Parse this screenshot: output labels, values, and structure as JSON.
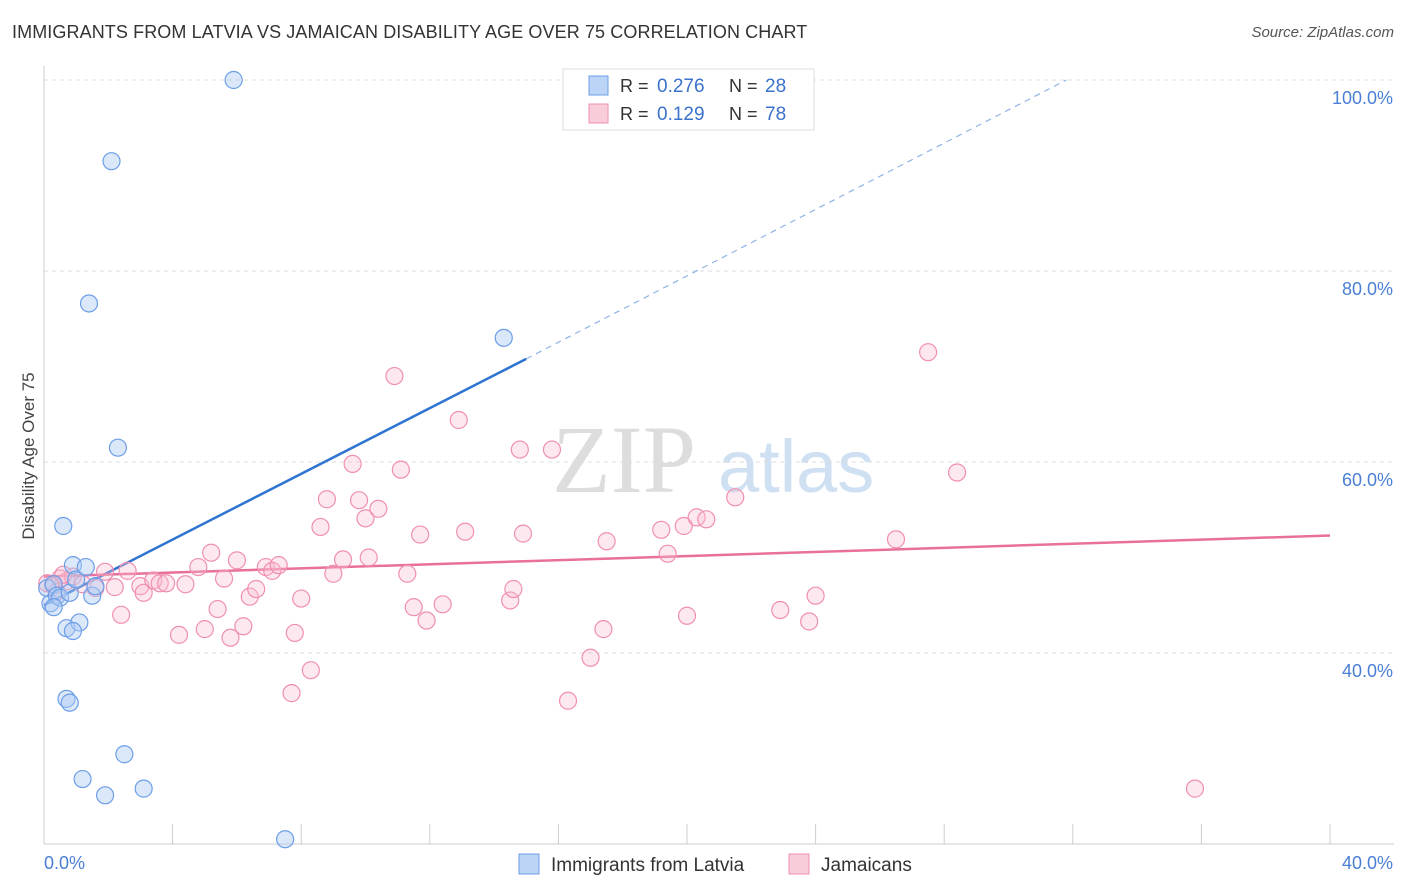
{
  "header": {
    "title": "IMMIGRANTS FROM LATVIA VS JAMAICAN DISABILITY AGE OVER 75 CORRELATION CHART",
    "source": "Source: ZipAtlas.com"
  },
  "watermark": {
    "zip": "ZIP",
    "atlas": "atlas"
  },
  "legend": {
    "r_label": "R =",
    "n_label": "N =",
    "rows": [
      {
        "r": "0.276",
        "n": "28",
        "color": "#6c9ee8"
      },
      {
        "r": "0.129",
        "n": "78",
        "color": "#f08fb0"
      }
    ]
  },
  "bottom_legend": [
    "Immigrants from Latvia",
    "Jamaicans"
  ],
  "chart_data": {
    "type": "scatter",
    "title": "IMMIGRANTS FROM LATVIA VS JAMAICAN DISABILITY AGE OVER 75 CORRELATION CHART",
    "xlabel": "",
    "ylabel": "Disability Age Over 75",
    "xlim": [
      0,
      40
    ],
    "ylim": [
      20,
      102
    ],
    "x_tick_labels": [
      "0.0%",
      "40.0%"
    ],
    "y_ticks": [
      40,
      60,
      80,
      100
    ],
    "y_tick_labels": [
      "40.0%",
      "60.0%",
      "80.0%",
      "100.0%"
    ],
    "grid": true,
    "legend_position": "top-center",
    "colors": {
      "latvia": "#6c9ee8",
      "latvia_line": "#2f74d0",
      "jamaica": "#f08fb0",
      "jamaica_line": "#e8709a",
      "tick_label": "#4a7fd4"
    },
    "series": [
      {
        "name": "Immigrants from Latvia",
        "trend": {
          "x": [
            0.0,
            15.0
          ],
          "y": [
            45.0,
            70.8
          ],
          "dashed_to": [
            31.8,
            100.0
          ]
        },
        "points": [
          [
            0.1,
            46.8
          ],
          [
            0.2,
            45.2
          ],
          [
            0.3,
            47.2
          ],
          [
            0.4,
            46.0
          ],
          [
            0.5,
            45.8
          ],
          [
            0.6,
            53.3
          ],
          [
            0.7,
            42.6
          ],
          [
            0.8,
            46.3
          ],
          [
            0.9,
            49.2
          ],
          [
            1.0,
            47.7
          ],
          [
            1.1,
            43.2
          ],
          [
            1.3,
            49.0
          ],
          [
            1.5,
            46.0
          ],
          [
            1.6,
            47.0
          ],
          [
            0.7,
            35.2
          ],
          [
            0.8,
            34.8
          ],
          [
            1.2,
            26.8
          ],
          [
            1.9,
            25.1
          ],
          [
            2.5,
            29.4
          ],
          [
            3.1,
            25.8
          ],
          [
            2.1,
            91.5
          ],
          [
            1.4,
            76.6
          ],
          [
            2.3,
            61.5
          ],
          [
            5.9,
            100.0
          ],
          [
            14.3,
            73.0
          ],
          [
            7.5,
            20.5
          ],
          [
            0.3,
            44.8
          ],
          [
            0.9,
            42.3
          ]
        ]
      },
      {
        "name": "Jamaicans",
        "trend": {
          "x": [
            0.0,
            40.0
          ],
          "y": [
            48.0,
            52.3
          ]
        },
        "points": [
          [
            0.1,
            47.3
          ],
          [
            0.3,
            47.0
          ],
          [
            0.4,
            46.4
          ],
          [
            0.5,
            47.8
          ],
          [
            0.7,
            47.5
          ],
          [
            0.9,
            48.0
          ],
          [
            1.2,
            47.2
          ],
          [
            1.6,
            46.8
          ],
          [
            1.9,
            48.5
          ],
          [
            2.2,
            46.9
          ],
          [
            2.4,
            44.0
          ],
          [
            2.6,
            48.6
          ],
          [
            3.0,
            47.0
          ],
          [
            3.1,
            46.3
          ],
          [
            3.4,
            47.6
          ],
          [
            3.6,
            47.3
          ],
          [
            3.8,
            47.3
          ],
          [
            4.2,
            41.9
          ],
          [
            4.4,
            47.2
          ],
          [
            4.8,
            49.0
          ],
          [
            5.0,
            42.5
          ],
          [
            5.2,
            50.5
          ],
          [
            5.4,
            44.6
          ],
          [
            5.6,
            47.8
          ],
          [
            5.8,
            41.6
          ],
          [
            6.0,
            49.7
          ],
          [
            6.2,
            42.8
          ],
          [
            6.4,
            45.9
          ],
          [
            6.6,
            46.7
          ],
          [
            6.9,
            49.0
          ],
          [
            7.1,
            48.6
          ],
          [
            7.3,
            49.2
          ],
          [
            7.7,
            35.8
          ],
          [
            7.8,
            42.1
          ],
          [
            8.0,
            45.7
          ],
          [
            8.3,
            38.2
          ],
          [
            8.6,
            53.2
          ],
          [
            8.8,
            56.1
          ],
          [
            9.0,
            48.3
          ],
          [
            9.3,
            49.8
          ],
          [
            9.6,
            59.8
          ],
          [
            9.8,
            56.0
          ],
          [
            10.0,
            54.1
          ],
          [
            10.1,
            50.0
          ],
          [
            10.4,
            55.1
          ],
          [
            10.9,
            69.0
          ],
          [
            11.1,
            59.2
          ],
          [
            11.3,
            48.3
          ],
          [
            11.5,
            44.8
          ],
          [
            11.7,
            52.4
          ],
          [
            11.9,
            43.4
          ],
          [
            12.4,
            45.1
          ],
          [
            12.9,
            64.4
          ],
          [
            13.1,
            52.7
          ],
          [
            14.5,
            45.5
          ],
          [
            14.6,
            46.7
          ],
          [
            14.8,
            61.3
          ],
          [
            14.9,
            52.5
          ],
          [
            15.8,
            61.3
          ],
          [
            16.3,
            35.0
          ],
          [
            17.0,
            39.5
          ],
          [
            17.4,
            42.5
          ],
          [
            17.5,
            51.7
          ],
          [
            19.2,
            52.9
          ],
          [
            19.4,
            50.4
          ],
          [
            19.9,
            53.3
          ],
          [
            20.0,
            43.9
          ],
          [
            20.3,
            54.2
          ],
          [
            20.6,
            54.0
          ],
          [
            21.5,
            56.3
          ],
          [
            22.9,
            44.5
          ],
          [
            23.8,
            43.3
          ],
          [
            24.0,
            46.0
          ],
          [
            26.5,
            51.9
          ],
          [
            27.5,
            71.5
          ],
          [
            28.4,
            58.9
          ],
          [
            35.8,
            25.8
          ],
          [
            0.6,
            48.2
          ]
        ]
      }
    ]
  }
}
